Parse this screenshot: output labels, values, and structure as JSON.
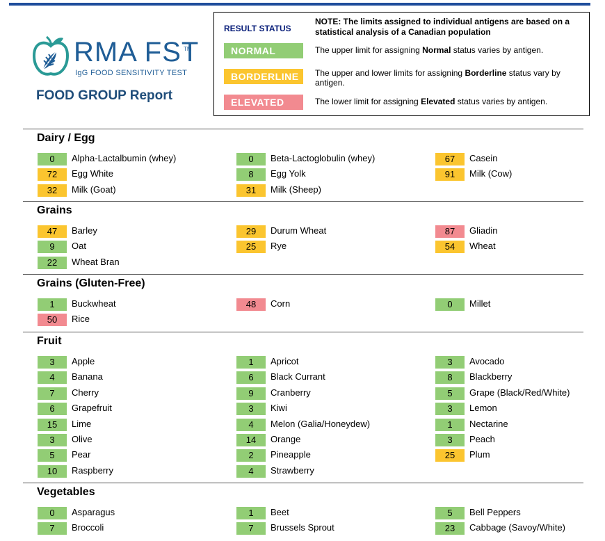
{
  "header": {
    "brand_name": "RMA FST",
    "trademark": "TM",
    "brand_subtitle": "IgG FOOD SENSITIVITY TEST",
    "report_title": "FOOD GROUP Report"
  },
  "legend": {
    "heading": "RESULT STATUS",
    "note": "NOTE: The limits assigned to individual antigens are based on a statistical analysis of a Canadian population",
    "rows": [
      {
        "label": "NORMAL",
        "status": "normal",
        "pre": "The upper limit for assigning ",
        "bold": "Normal",
        "post": " status varies by antigen."
      },
      {
        "label": "BORDERLINE",
        "status": "borderline",
        "pre": "The upper and lower limits for assigning ",
        "bold": "Borderline",
        "post": " status vary by antigen."
      },
      {
        "label": "ELEVATED",
        "status": "elevated",
        "pre": "The lower limit for assigning ",
        "bold": "Elevated",
        "post": " status varies by antigen."
      }
    ]
  },
  "colors": {
    "normal": "#92cd75",
    "borderline": "#fbc52f",
    "elevated": "#f28a90"
  },
  "sections": [
    {
      "title": "Dairy / Egg",
      "items": [
        {
          "value": "0",
          "name": "Alpha-Lactalbumin (whey)",
          "status": "normal"
        },
        {
          "value": "0",
          "name": "Beta-Lactoglobulin (whey)",
          "status": "normal"
        },
        {
          "value": "67",
          "name": "Casein",
          "status": "borderline"
        },
        {
          "value": "72",
          "name": "Egg White",
          "status": "borderline"
        },
        {
          "value": "8",
          "name": "Egg Yolk",
          "status": "normal"
        },
        {
          "value": "91",
          "name": "Milk (Cow)",
          "status": "borderline"
        },
        {
          "value": "32",
          "name": "Milk (Goat)",
          "status": "borderline"
        },
        {
          "value": "31",
          "name": "Milk (Sheep)",
          "status": "borderline"
        }
      ]
    },
    {
      "title": "Grains",
      "items": [
        {
          "value": "47",
          "name": "Barley",
          "status": "borderline"
        },
        {
          "value": "29",
          "name": "Durum Wheat",
          "status": "borderline"
        },
        {
          "value": "87",
          "name": "Gliadin",
          "status": "elevated"
        },
        {
          "value": "9",
          "name": "Oat",
          "status": "normal"
        },
        {
          "value": "25",
          "name": "Rye",
          "status": "borderline"
        },
        {
          "value": "54",
          "name": "Wheat",
          "status": "borderline"
        },
        {
          "value": "22",
          "name": "Wheat Bran",
          "status": "normal"
        }
      ]
    },
    {
      "title": "Grains (Gluten-Free)",
      "items": [
        {
          "value": "1",
          "name": "Buckwheat",
          "status": "normal"
        },
        {
          "value": "48",
          "name": "Corn",
          "status": "elevated"
        },
        {
          "value": "0",
          "name": "Millet",
          "status": "normal"
        },
        {
          "value": "50",
          "name": "Rice",
          "status": "elevated"
        }
      ]
    },
    {
      "title": "Fruit",
      "items": [
        {
          "value": "3",
          "name": "Apple",
          "status": "normal"
        },
        {
          "value": "1",
          "name": "Apricot",
          "status": "normal"
        },
        {
          "value": "3",
          "name": "Avocado",
          "status": "normal"
        },
        {
          "value": "4",
          "name": "Banana",
          "status": "normal"
        },
        {
          "value": "6",
          "name": "Black Currant",
          "status": "normal"
        },
        {
          "value": "8",
          "name": "Blackberry",
          "status": "normal"
        },
        {
          "value": "7",
          "name": "Cherry",
          "status": "normal"
        },
        {
          "value": "9",
          "name": "Cranberry",
          "status": "normal"
        },
        {
          "value": "5",
          "name": "Grape (Black/Red/White)",
          "status": "normal"
        },
        {
          "value": "6",
          "name": "Grapefruit",
          "status": "normal"
        },
        {
          "value": "3",
          "name": "Kiwi",
          "status": "normal"
        },
        {
          "value": "3",
          "name": "Lemon",
          "status": "normal"
        },
        {
          "value": "15",
          "name": "Lime",
          "status": "normal"
        },
        {
          "value": "4",
          "name": "Melon (Galia/Honeydew)",
          "status": "normal"
        },
        {
          "value": "1",
          "name": "Nectarine",
          "status": "normal"
        },
        {
          "value": "3",
          "name": "Olive",
          "status": "normal"
        },
        {
          "value": "14",
          "name": "Orange",
          "status": "normal"
        },
        {
          "value": "3",
          "name": "Peach",
          "status": "normal"
        },
        {
          "value": "5",
          "name": "Pear",
          "status": "normal"
        },
        {
          "value": "2",
          "name": "Pineapple",
          "status": "normal"
        },
        {
          "value": "25",
          "name": "Plum",
          "status": "borderline"
        },
        {
          "value": "10",
          "name": "Raspberry",
          "status": "normal"
        },
        {
          "value": "4",
          "name": "Strawberry",
          "status": "normal"
        }
      ]
    },
    {
      "title": "Vegetables",
      "items": [
        {
          "value": "0",
          "name": "Asparagus",
          "status": "normal"
        },
        {
          "value": "1",
          "name": "Beet",
          "status": "normal"
        },
        {
          "value": "5",
          "name": "Bell Peppers",
          "status": "normal"
        },
        {
          "value": "7",
          "name": "Broccoli",
          "status": "normal"
        },
        {
          "value": "7",
          "name": "Brussels Sprout",
          "status": "normal"
        },
        {
          "value": "23",
          "name": "Cabbage (Savoy/White)",
          "status": "normal"
        }
      ]
    }
  ]
}
